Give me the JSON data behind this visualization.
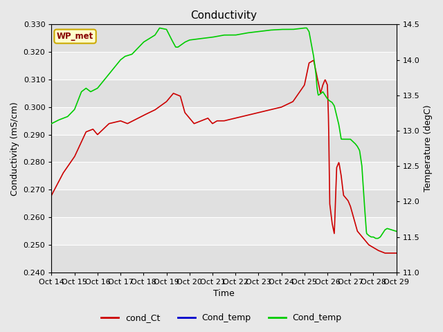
{
  "title": "Conductivity",
  "xlabel": "Time",
  "ylabel_left": "Conductivity (mS/cm)",
  "ylabel_right": "Temperature (degC)",
  "xlim": [
    0,
    15
  ],
  "ylim_left": [
    0.24,
    0.33
  ],
  "ylim_right": [
    11.0,
    14.5
  ],
  "x_tick_labels": [
    "Oct 14",
    "Oct 15",
    "Oct 16",
    "Oct 17",
    "Oct 18",
    "Oct 19",
    "Oct 20",
    "Oct 21",
    "Oct 22",
    "Oct 23",
    "Oct 24",
    "Oct 25",
    "Oct 26",
    "Oct 27",
    "Oct 28",
    "Oct 29"
  ],
  "yticks_left": [
    0.24,
    0.25,
    0.26,
    0.27,
    0.28,
    0.29,
    0.3,
    0.31,
    0.32,
    0.33
  ],
  "yticks_right": [
    11.0,
    11.5,
    12.0,
    12.5,
    13.0,
    13.5,
    14.0,
    14.5
  ],
  "bg_color": "#e8e8e8",
  "plot_bg_alt1": "#e0e0e0",
  "plot_bg_alt2": "#ececec",
  "grid_color": "#ffffff",
  "legend_entries": [
    "cond_Ct",
    "Cond_temp",
    "Cond_temp"
  ],
  "legend_colors": [
    "#cc0000",
    "#0000cc",
    "#00cc00"
  ],
  "box_label": "WP_met",
  "box_facecolor": "#ffffcc",
  "box_edgecolor": "#ccaa00",
  "cond_Ct_color": "#cc0000",
  "cond_temp_color": "#00cc00",
  "font_size_ticks": 8,
  "font_size_labels": 9,
  "font_size_title": 11
}
